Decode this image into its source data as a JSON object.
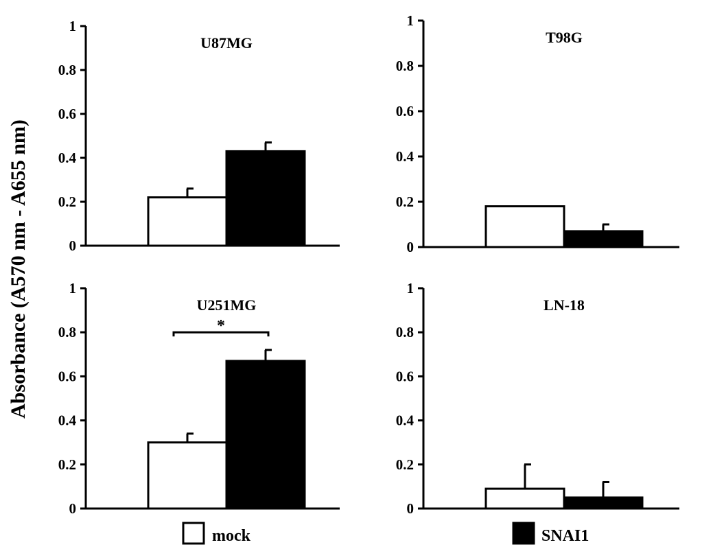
{
  "y_axis_label": "Absorbance (A570 nm - A655 nm)",
  "legend": [
    {
      "label": "mock",
      "fill": "#ffffff"
    },
    {
      "label": "SNAI1",
      "fill": "#000000"
    }
  ],
  "colors": {
    "mock": "#ffffff",
    "SNAI1": "#000000",
    "axis": "#000000"
  },
  "chart_data": [
    {
      "type": "bar",
      "title": "U87MG",
      "categories": [
        "mock",
        "SNAI1"
      ],
      "values": [
        0.22,
        0.43
      ],
      "errors": [
        0.04,
        0.04
      ],
      "ylim": [
        0,
        1
      ],
      "yticks": [
        0,
        0.2,
        0.4,
        0.6,
        0.8,
        1
      ],
      "ytick_labels": [
        "0",
        "0.2",
        "0.4",
        "0.6",
        "0.8",
        "1"
      ],
      "annotation": null
    },
    {
      "type": "bar",
      "title": "T98G",
      "categories": [
        "mock",
        "SNAI1"
      ],
      "values": [
        0.18,
        0.07
      ],
      "errors": [
        0.0,
        0.03
      ],
      "ylim": [
        0,
        1
      ],
      "yticks": [
        0,
        0.2,
        0.4,
        0.6,
        0.8,
        1
      ],
      "ytick_labels": [
        "0",
        "0.2",
        "0.4",
        "0.6",
        "0.8",
        "1"
      ],
      "annotation": null
    },
    {
      "type": "bar",
      "title": "U251MG",
      "categories": [
        "mock",
        "SNAI1"
      ],
      "values": [
        0.3,
        0.67
      ],
      "errors": [
        0.04,
        0.05
      ],
      "ylim": [
        0,
        1
      ],
      "yticks": [
        0,
        0.2,
        0.4,
        0.6,
        0.8,
        1
      ],
      "ytick_labels": [
        "0",
        "0.2",
        "0.4",
        "0.6",
        "0.8",
        "1"
      ],
      "annotation": {
        "text": "*",
        "y": 0.8
      }
    },
    {
      "type": "bar",
      "title": "LN-18",
      "categories": [
        "mock",
        "SNAI1"
      ],
      "values": [
        0.09,
        0.05
      ],
      "errors": [
        0.11,
        0.07
      ],
      "ylim": [
        0,
        1
      ],
      "yticks": [
        0,
        0.2,
        0.4,
        0.6,
        0.8,
        1
      ],
      "ytick_labels": [
        "0",
        "0.2",
        "0.4",
        "0.6",
        "0.8",
        "1"
      ],
      "annotation": null
    }
  ]
}
